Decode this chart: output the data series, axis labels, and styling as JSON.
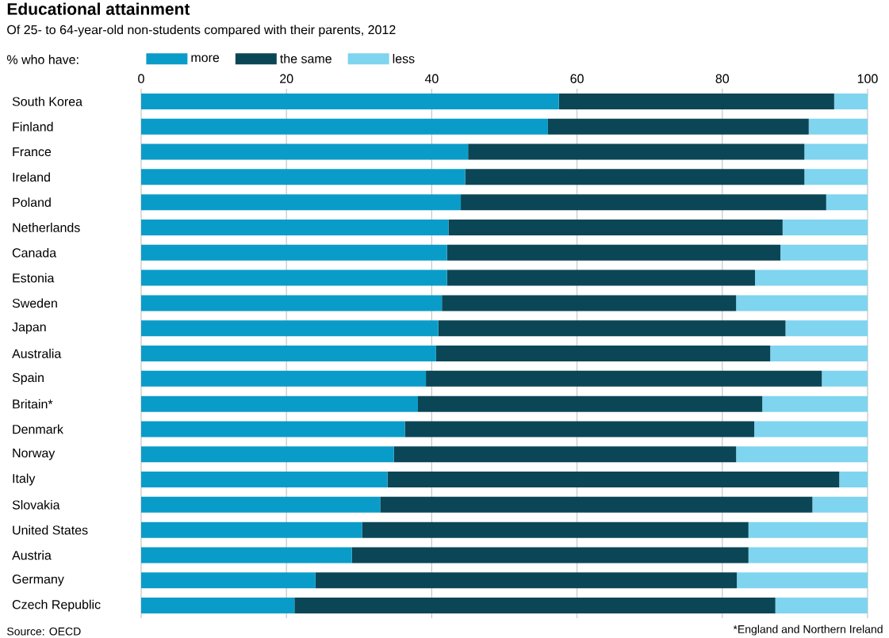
{
  "chart_data": {
    "type": "bar",
    "orientation": "horizontal",
    "stacked": true,
    "title": "Educational attainment",
    "subtitle": "Of 25- to 64-year-old non-students compared with their parents, 2012",
    "legend_title": "% who have:",
    "categories": [
      "South Korea",
      "Finland",
      "France",
      "Ireland",
      "Poland",
      "Netherlands",
      "Canada",
      "Estonia",
      "Sweden",
      "Japan",
      "Australia",
      "Spain",
      "Britain*",
      "Denmark",
      "Norway",
      "Italy",
      "Slovakia",
      "United States",
      "Austria",
      "Germany",
      "Czech Republic"
    ],
    "series": [
      {
        "name": "more",
        "color": "#0a9cc8",
        "values": [
          57.5,
          56.0,
          45.0,
          44.6,
          44.0,
          42.3,
          42.1,
          42.1,
          41.4,
          40.9,
          40.6,
          39.2,
          38.1,
          36.3,
          34.8,
          33.9,
          32.9,
          30.4,
          29.0,
          24.0,
          21.1
        ]
      },
      {
        "name": "the same",
        "color": "#0b4656",
        "values": [
          37.9,
          35.9,
          46.3,
          46.7,
          50.3,
          46.0,
          45.9,
          42.4,
          40.5,
          47.8,
          46.0,
          54.5,
          47.4,
          48.1,
          47.1,
          62.2,
          59.5,
          53.2,
          54.6,
          58.0,
          66.2
        ]
      },
      {
        "name": "less",
        "color": "#7fd4ef",
        "values": [
          4.6,
          8.1,
          8.7,
          8.7,
          5.7,
          11.7,
          12.0,
          15.5,
          18.1,
          11.3,
          13.4,
          6.3,
          14.5,
          15.6,
          18.1,
          3.9,
          7.6,
          16.4,
          16.4,
          18.0,
          12.7
        ]
      }
    ],
    "xlim": [
      0,
      100
    ],
    "xticks": [
      0,
      20,
      40,
      60,
      80,
      100
    ],
    "grid": "x",
    "legend": "top left",
    "annotations": [
      "Source: OECD",
      "*England and Northern Ireland"
    ]
  }
}
